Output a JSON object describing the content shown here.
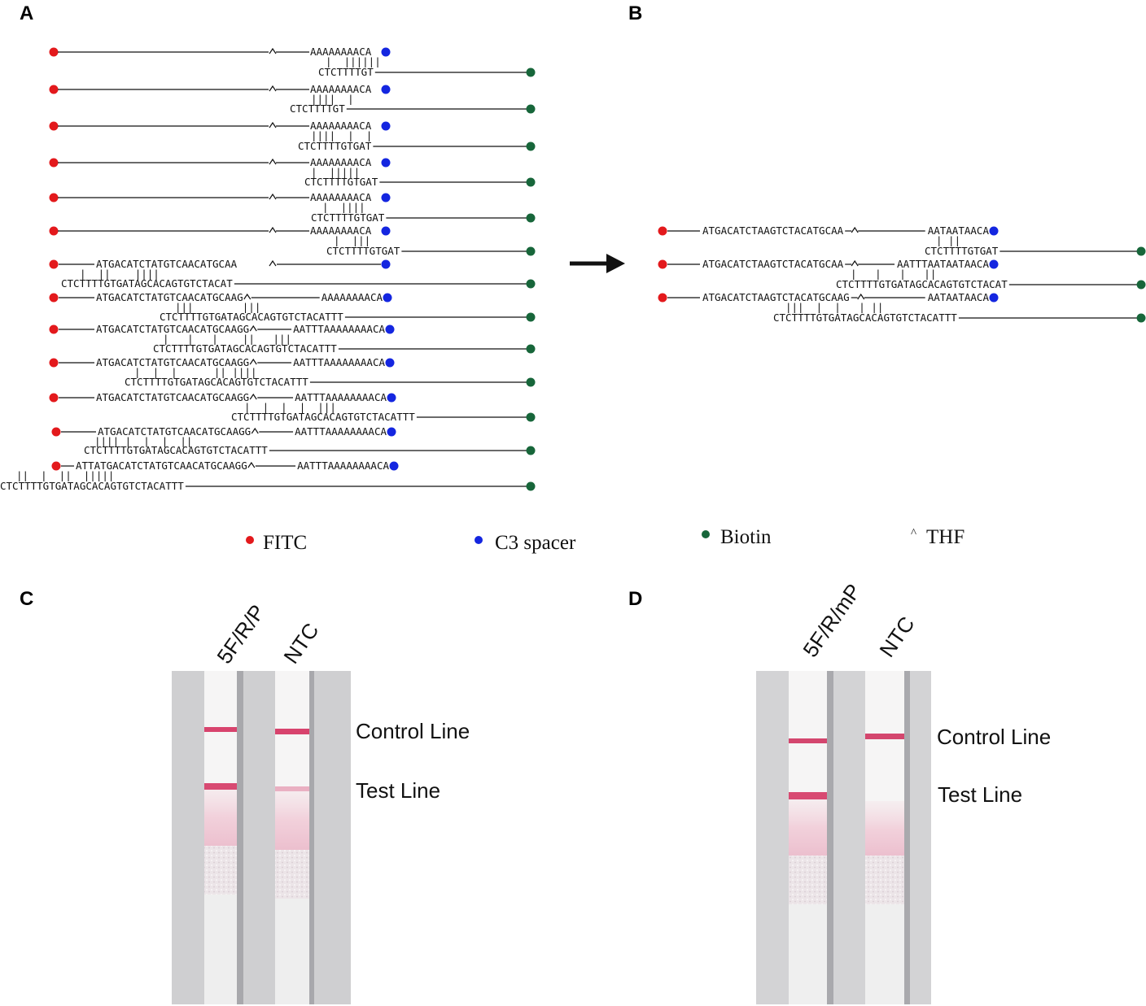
{
  "panels": {
    "A": "A",
    "B": "B",
    "C": "C",
    "D": "D"
  },
  "colors": {
    "fitc": "#e3191c",
    "c3": "#1426e0",
    "biotin": "#17663a",
    "mutation": "#e3191c",
    "line": "#111111"
  },
  "panel_a": {
    "pairs": [
      {
        "top_left": "",
        "top_right": "AAAAAAAACA",
        "ticks": "|  ||||||",
        "bottom": "CTCTTTTGT"
      },
      {
        "top_left": "",
        "top_right": "AAAAAAAACA",
        "ticks": "||||  |",
        "bottom": "CTCTTTTGT"
      },
      {
        "top_left": "",
        "top_right": "AAAAAAAACA",
        "ticks": "||||  |  |",
        "bottom": "CTCTTTTGTGAT"
      },
      {
        "top_left": "",
        "top_right": "AAAAAAAACA",
        "ticks": "|  |||||",
        "bottom": "CTCTTTTGTGAT"
      },
      {
        "top_left": "",
        "top_right": "AAAAAAAACA",
        "ticks": "|  ||||",
        "bottom": "CTCTTTTGTGAT"
      },
      {
        "top_left": "",
        "top_right": "AAAAAAAACA",
        "ticks": "|  |||",
        "bottom": "CTCTTTTGTGAT"
      },
      {
        "top_left": "ATGACATCTATGTCAACATGCAA",
        "top_right": "",
        "ticks": "|  ||    ||||",
        "bottom": "CTCTTTTGTGATAGCACAGTGTCTACAT"
      },
      {
        "top_left": "ATGACATCTATGTCAACATGCAAG",
        "top_right": "AAAAAAAACA",
        "ticks": "|||        |||",
        "bottom": "CTCTTTTGTGATAGCACAGTGTCTACATTT"
      },
      {
        "top_left": "ATGACATCTATGTCAACATGCAAGG",
        "top_right": "AATTTAAAAAAAACA",
        "ticks": "|   |   |    ||   |||",
        "bottom": "CTCTTTTGTGATAGCACAGTGTCTACATTT"
      },
      {
        "top_left": "ATGACATCTATGTCAACATGCAAGG",
        "top_right": "AATTTAAAAAAAACA",
        "ticks": "|  |  |      || ||||",
        "bottom": "CTCTTTTGTGATAGCACAGTGTCTACATTT"
      },
      {
        "top_left": "ATGACATCTATGTCAACATGCAAGG",
        "top_right": "AATTTAAAAAAAACA",
        "ticks": "|  |  |  |  |||",
        "bottom": "CTCTTTTGTGATAGCACAGTGTCTACATTT"
      },
      {
        "top_left": "ATGACATCTATGTCAACATGCAAGG",
        "top_right": "AATTTAAAAAAAACA",
        "ticks": "|||| |  |  |  ||",
        "bottom": "CTCTTTTGTGATAGCACAGTGTCTACATTT"
      },
      {
        "top_left": "ATTATGACATCTATGTCAACATGCAAGG",
        "top_right": "AATTTAAAAAAAACA",
        "ticks": "||  |  ||  |||||",
        "bottom": "CTCTTTTGTGATAGCACAGTGTCTACATTT"
      }
    ]
  },
  "panel_b": {
    "pairs": [
      {
        "top_left": [
          {
            "t": "ATGACATCTA",
            "m": false
          },
          {
            "t": "A",
            "m": true
          },
          {
            "t": "GTC",
            "m": false
          },
          {
            "t": "T",
            "m": true
          },
          {
            "t": "ACATGCAA",
            "m": false
          }
        ],
        "top_right": [
          {
            "t": "AA",
            "m": false
          },
          {
            "t": "T",
            "m": true
          },
          {
            "t": "AA",
            "m": false
          },
          {
            "t": "T",
            "m": true
          },
          {
            "t": "AACA",
            "m": false
          }
        ],
        "ticks": "| ||",
        "bottom": "CTCTTTTGTGAT"
      },
      {
        "top_left": [
          {
            "t": "ATGACATCTA",
            "m": false
          },
          {
            "t": "A",
            "m": true
          },
          {
            "t": "GTC",
            "m": false
          },
          {
            "t": "T",
            "m": true
          },
          {
            "t": "ACATGCAA",
            "m": false
          }
        ],
        "top_right": [
          {
            "t": "AATTTAA",
            "m": false
          },
          {
            "t": "T",
            "m": true
          },
          {
            "t": "AA",
            "m": false
          },
          {
            "t": "T",
            "m": true
          },
          {
            "t": "AACA",
            "m": false
          }
        ],
        "ticks": "|   |   |   ||",
        "bottom": "CTCTTTTGTGATAGCACAGTGTCTACAT"
      },
      {
        "top_left": [
          {
            "t": "ATGACATCTA",
            "m": false
          },
          {
            "t": "A",
            "m": true
          },
          {
            "t": "GTC",
            "m": false
          },
          {
            "t": "T",
            "m": true
          },
          {
            "t": "ACATGCAAG",
            "m": false
          }
        ],
        "top_right": [
          {
            "t": "AA",
            "m": false
          },
          {
            "t": "T",
            "m": true
          },
          {
            "t": "AA",
            "m": false
          },
          {
            "t": "T",
            "m": true
          },
          {
            "t": "AACA",
            "m": false
          }
        ],
        "ticks": "|||  |  |   | ||",
        "bottom": "CTCTTTTGTGATAGCACAGTGTCTACATTT"
      }
    ]
  },
  "legend": [
    {
      "key": "fitc",
      "label": "FITC",
      "symbol": "dot"
    },
    {
      "key": "c3",
      "label": "C3 spacer",
      "symbol": "dot"
    },
    {
      "key": "biotin",
      "label": "Biotin",
      "symbol": "dot"
    },
    {
      "key": "thf",
      "label": "THF",
      "symbol": "^"
    }
  ],
  "panel_c": {
    "strips": [
      "5F/R/P",
      "NTC"
    ],
    "control_line": "Control Line",
    "test_line": "Test Line"
  },
  "panel_d": {
    "strips": [
      "5F/R/mP",
      "NTC"
    ],
    "control_line": "Control Line",
    "test_line": "Test Line"
  }
}
